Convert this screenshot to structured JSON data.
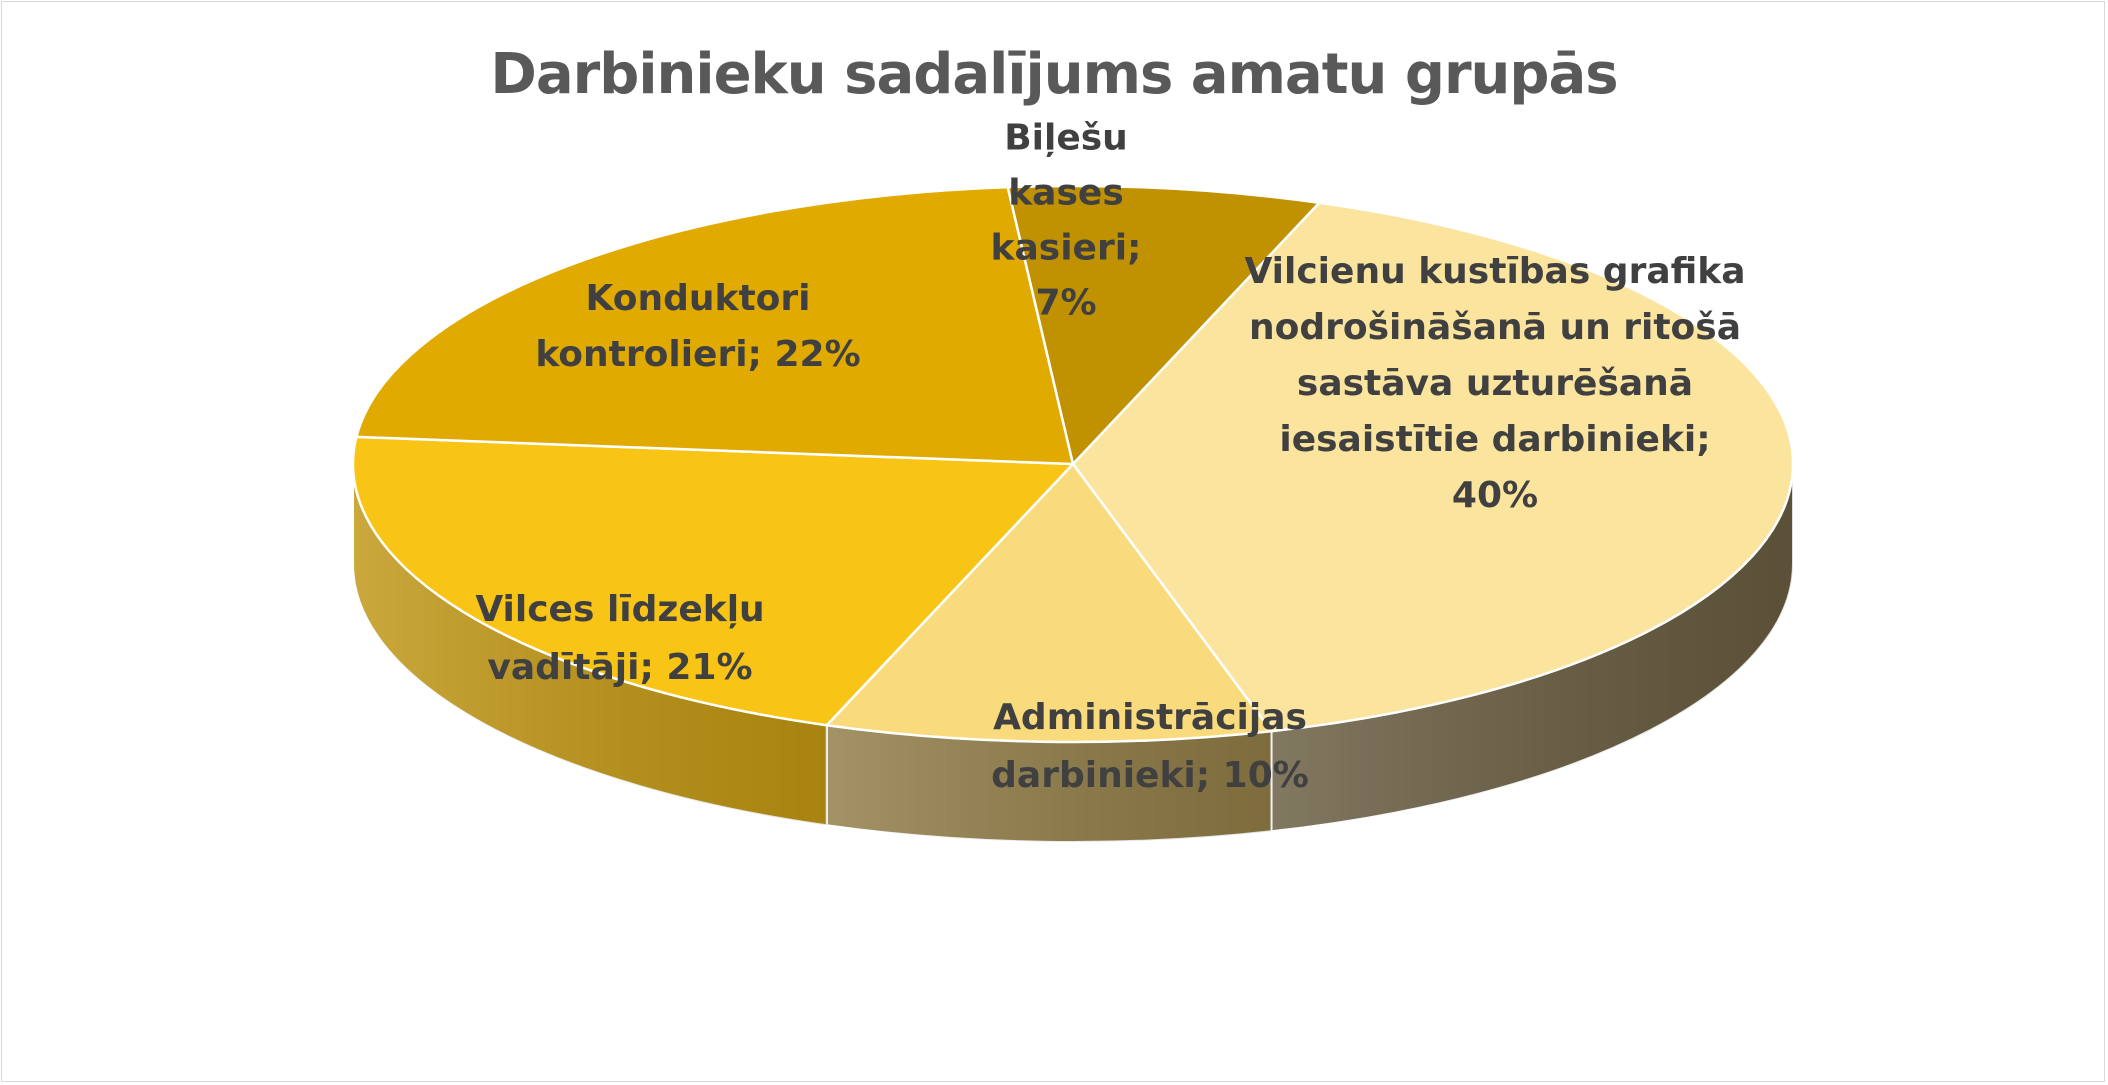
{
  "chart_data": {
    "type": "pie",
    "style": "3d",
    "title": "Darbinieku sadalījums amatu grupās",
    "slices": [
      {
        "name": "Vilcienu kustības grafika nodrošināšanā un ritošā sastāva uzturēšanā iesaistītie darbinieki",
        "value": 40,
        "label_lines": [
          "Vilcienu kustības grafika",
          "nodrošināšanā un ritošā",
          "sastāva uzturēšanā",
          "iesaistītie darbinieki;",
          "40%"
        ],
        "color": "#FAE49E",
        "side_color": "#675B3F"
      },
      {
        "name": "Administrācijas darbinieki",
        "value": 10,
        "label_lines": [
          "Administrācijas",
          "darbinieki; 10%"
        ],
        "color": "#F9DB7D",
        "side_color": "#8F7B45"
      },
      {
        "name": "Vilces līdzekļu vadītāji",
        "value": 21,
        "label_lines": [
          "Vilces līdzekļu",
          "vadītāji; 21%"
        ],
        "color": "#F8C517",
        "side_color": "#BF9511"
      },
      {
        "name": "Konduktori kontrolieri",
        "value": 22,
        "label_lines": [
          "Konduktori",
          "kontrolieri; 22%"
        ],
        "color": "#E0AA00",
        "side_color": "#A77F00"
      },
      {
        "name": "Biļešu kases kasieri",
        "value": 7,
        "label_lines": [
          "Biļešu",
          "kases",
          "kasieri;",
          "7%"
        ],
        "color": "#C09100",
        "side_color": "#8E6B00"
      }
    ],
    "legend": "none",
    "data_labels": "category; percentage"
  }
}
